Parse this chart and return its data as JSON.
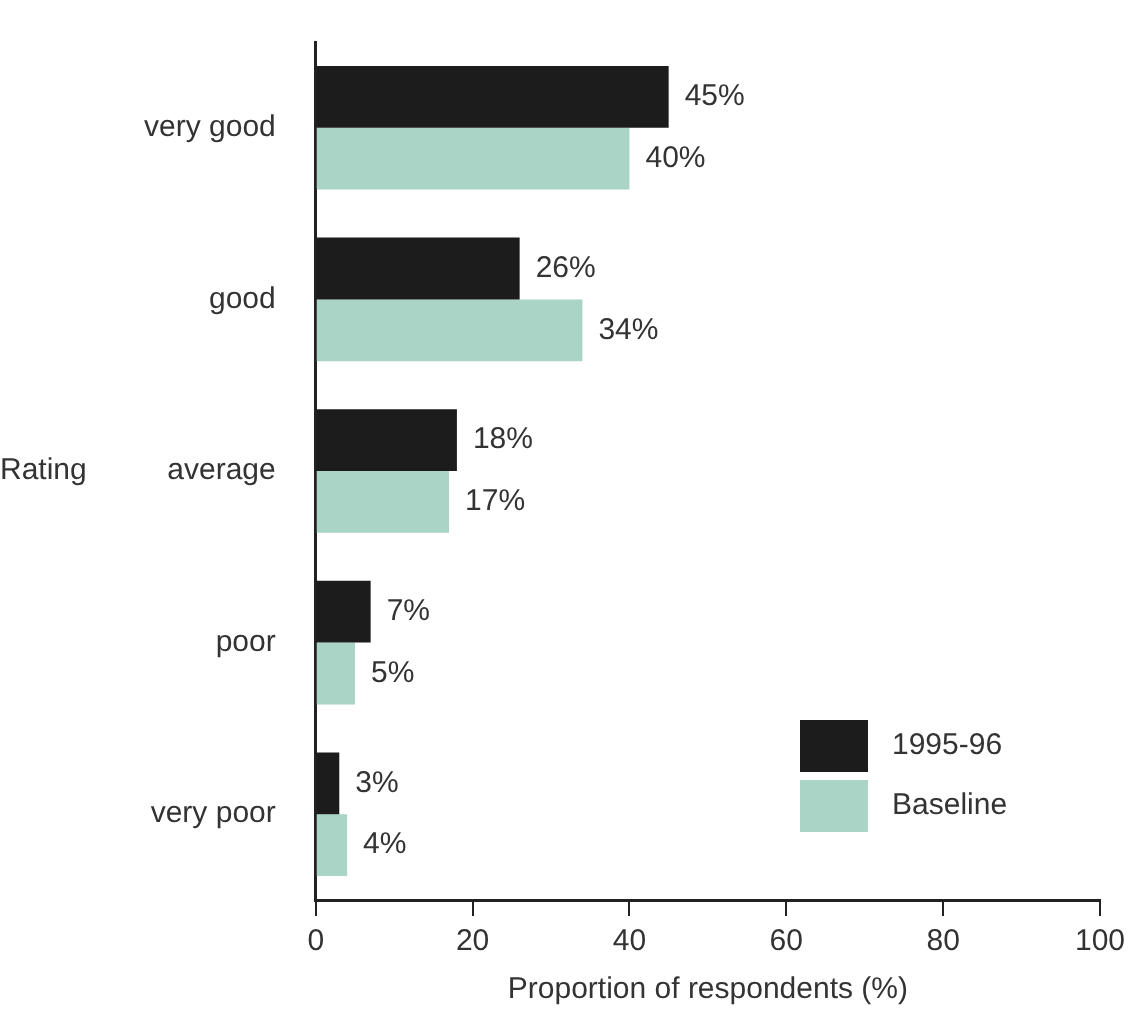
{
  "chart_data": {
    "type": "bar",
    "orientation": "horizontal",
    "xlabel": "Proportion of respondents (%)",
    "ylabel": "Rating",
    "categories": [
      "very good",
      "good",
      "average",
      "poor",
      "very poor"
    ],
    "series": [
      {
        "name": "1995-96",
        "color": "#1c1c1c",
        "values": [
          45,
          26,
          18,
          7,
          3
        ],
        "value_labels": [
          "45%",
          "26%",
          "18%",
          "7%",
          "3%"
        ]
      },
      {
        "name": "Baseline",
        "color": "#a9d4c6",
        "values": [
          40,
          34,
          17,
          5,
          4
        ],
        "value_labels": [
          "40%",
          "34%",
          "17%",
          "5%",
          "4%"
        ]
      }
    ],
    "xlim": [
      0,
      100
    ],
    "xticks": [
      0,
      20,
      40,
      60,
      80,
      100
    ],
    "grid": false,
    "legend": "bottom right"
  }
}
